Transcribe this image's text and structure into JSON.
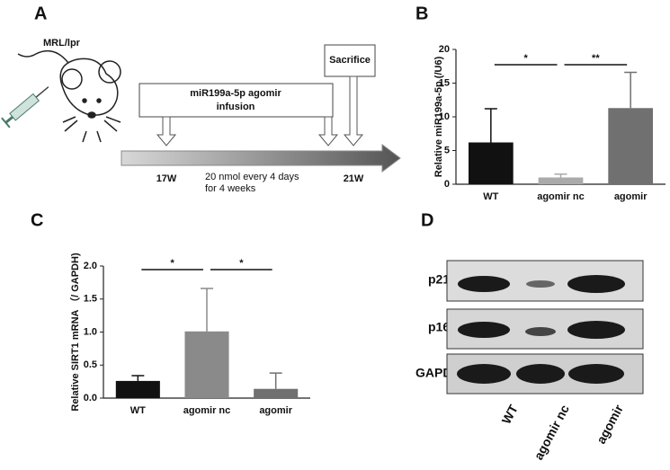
{
  "panel_labels": [
    "A",
    "B",
    "C",
    "D"
  ],
  "diagram": {
    "strain": "MRL/lpr",
    "treatment": [
      "miR199a-5p agomir",
      "infusion"
    ],
    "endpoint": "Sacrifice",
    "start": "17W",
    "end": "21W",
    "schedule": [
      "20 nmol every 4 days",
      "for 4 weeks"
    ]
  },
  "blot": {
    "rows": [
      "p21",
      "p16",
      "GAPDH"
    ],
    "lanes": [
      "WT",
      "agomir nc",
      "agomir"
    ]
  },
  "chart_data": [
    {
      "type": "bar",
      "y_label": "Relative miR199a-5p (/U6)",
      "categories": [
        "WT",
        "agomir nc",
        "agomir"
      ],
      "values": [
        6.2,
        1.0,
        11.3
      ],
      "errors": [
        5.0,
        0.5,
        5.3
      ],
      "colors": [
        "#111111",
        "#aaaaaa",
        "#707070"
      ],
      "ylim": [
        0,
        20
      ],
      "yticks": [
        0,
        5,
        10,
        15,
        20
      ],
      "significance": [
        "*",
        "**"
      ]
    },
    {
      "type": "bar",
      "y_label": "Relative SIRT1 mRNA （/ GAPDH)",
      "categories": [
        "WT",
        "agomir nc",
        "agomir"
      ],
      "values": [
        0.26,
        1.01,
        0.14
      ],
      "errors": [
        0.08,
        0.65,
        0.24
      ],
      "colors": [
        "#111111",
        "#8a8a8a",
        "#707070"
      ],
      "ylim": [
        0,
        2.0
      ],
      "yticks": [
        {
          "value": 0,
          "label": "0.0"
        },
        0.5,
        {
          "value": 1,
          "label": "1.0"
        },
        1.5,
        {
          "value": 2,
          "label": "2.0"
        }
      ],
      "significance": [
        "*",
        "*"
      ]
    }
  ]
}
